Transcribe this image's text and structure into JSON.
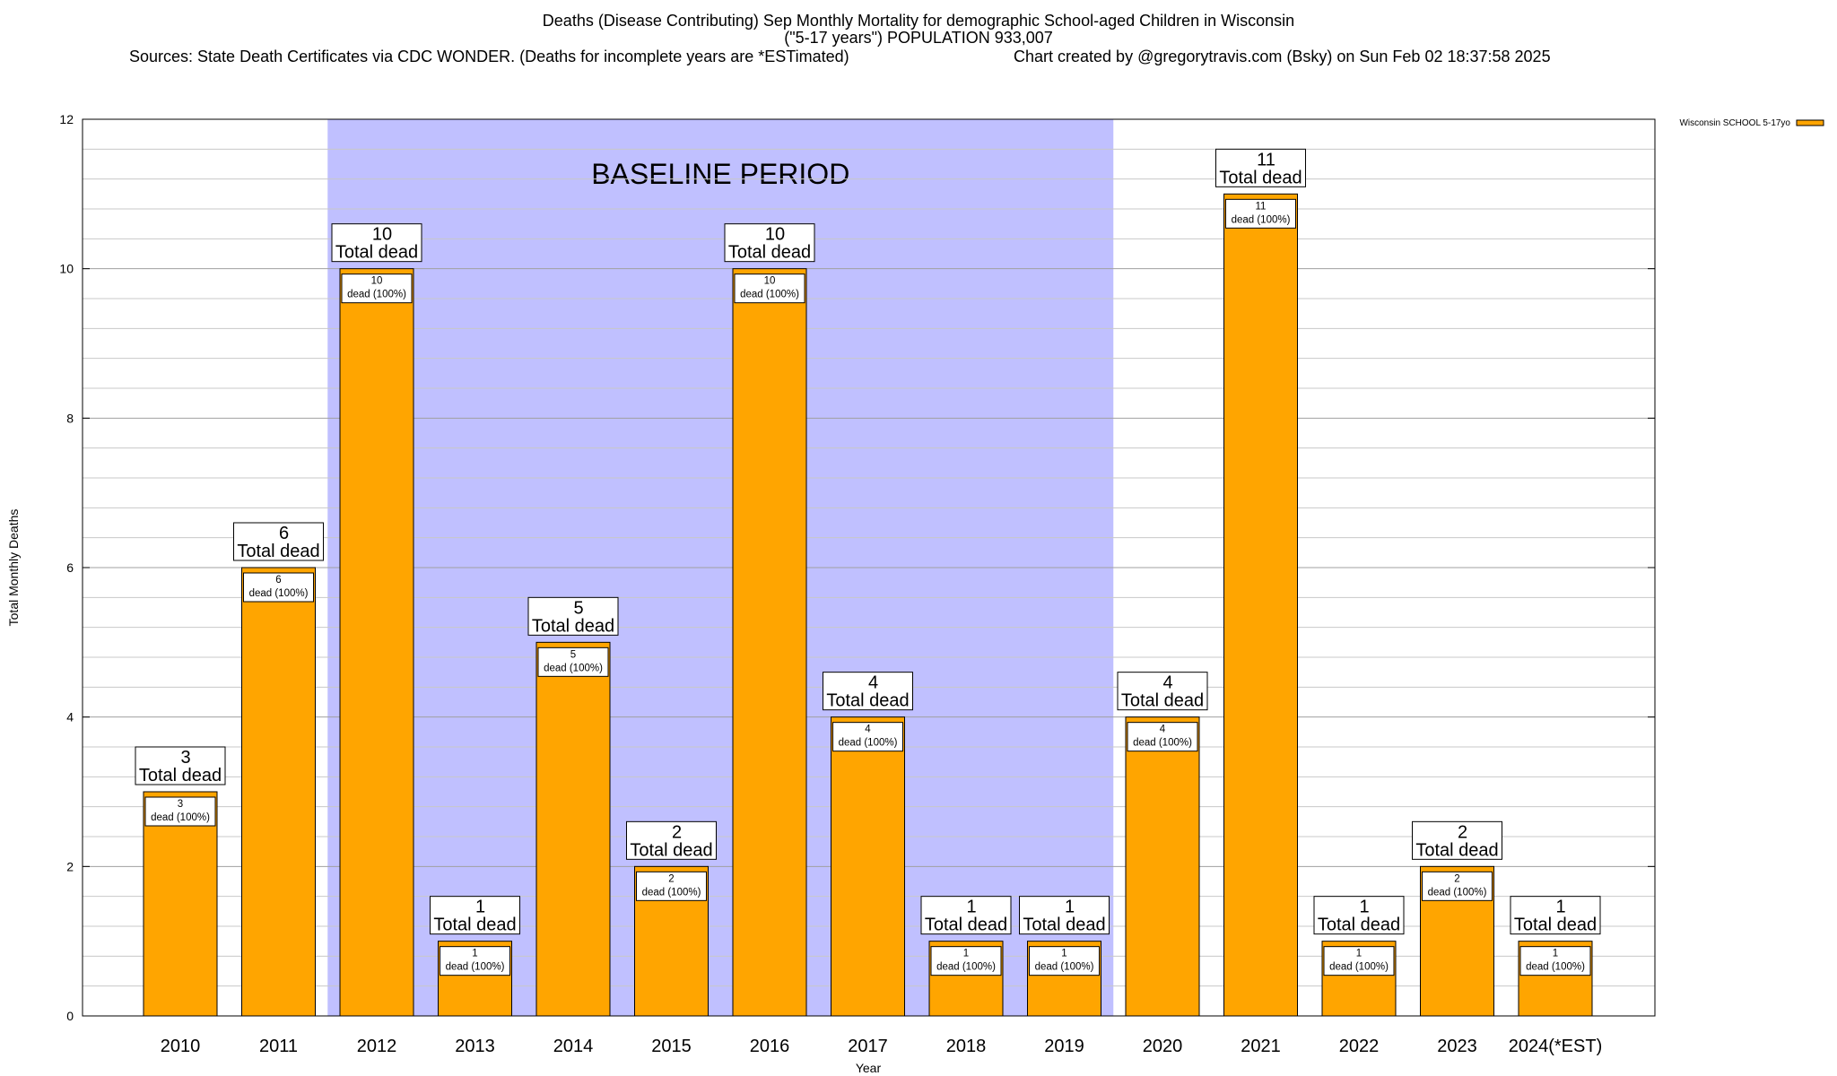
{
  "chart_data": {
    "type": "bar",
    "title_lines": [
      "Deaths (Disease Contributing) Sep Monthly Mortality for demographic School-aged Children in Wisconsin",
      "(\"5-17 years\") POPULATION 933,007"
    ],
    "sources_text": "Sources: State Death Certificates via CDC WONDER. (Deaths for incomplete years are *ESTimated)",
    "credit_text": "Chart created by @gregorytravis.com (Bsky) on Sun Feb 02 18:37:58 2025",
    "xlabel": "Year",
    "ylabel": "Total Monthly Deaths",
    "ylim": [
      0,
      12
    ],
    "yticks": [
      0,
      2,
      4,
      6,
      8,
      10,
      12
    ],
    "grid": true,
    "categories": [
      "2010",
      "2011",
      "2012",
      "2013",
      "2014",
      "2015",
      "2016",
      "2017",
      "2018",
      "2019",
      "2020",
      "2021",
      "2022",
      "2023",
      "2024(*EST)"
    ],
    "series": [
      {
        "name": "Wisconsin SCHOOL 5-17yo",
        "color": "#ffa500",
        "values": [
          3,
          6,
          10,
          1,
          5,
          2,
          10,
          4,
          1,
          1,
          4,
          11,
          1,
          2,
          1
        ]
      }
    ],
    "total_label": "Total dead",
    "inner_label": "dead (100%)",
    "baseline_period": {
      "label": "BASELINE PERIOD",
      "from": "2012",
      "to": "2019",
      "color": "#c0c0ff"
    },
    "legend_position": "top-right"
  }
}
